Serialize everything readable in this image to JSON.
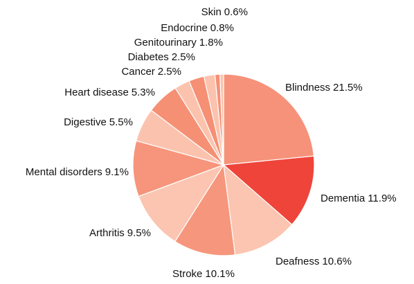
{
  "chart_data": {
    "type": "pie",
    "categories": [
      "Blindness",
      "Dementia",
      "Deafness",
      "Stroke",
      "Arthritis",
      "Mental disorders",
      "Digestive",
      "Heart disease",
      "Cancer",
      "Diabetes",
      "Genitourinary",
      "Endocrine",
      "Skin"
    ],
    "values": [
      21.5,
      11.9,
      10.6,
      10.1,
      9.5,
      9.1,
      5.5,
      5.3,
      2.5,
      2.5,
      1.8,
      0.8,
      0.6
    ],
    "value_labels": [
      "21.5%",
      "11.9%",
      "10.6%",
      "10.1%",
      "9.5%",
      "9.1%",
      "5.5%",
      "5.3%",
      "2.5%",
      "2.5%",
      "1.8%",
      "0.8%",
      "0.6%"
    ],
    "colors": [
      "#f6927a",
      "#ef443a",
      "#fbc5b1",
      "#f6967c",
      "#fbc5b1",
      "#f6957b",
      "#fbc3ae",
      "#f59075",
      "#fbc3ae",
      "#f59075",
      "#fbc3ae",
      "#f59075",
      "#fbc3ae"
    ]
  }
}
